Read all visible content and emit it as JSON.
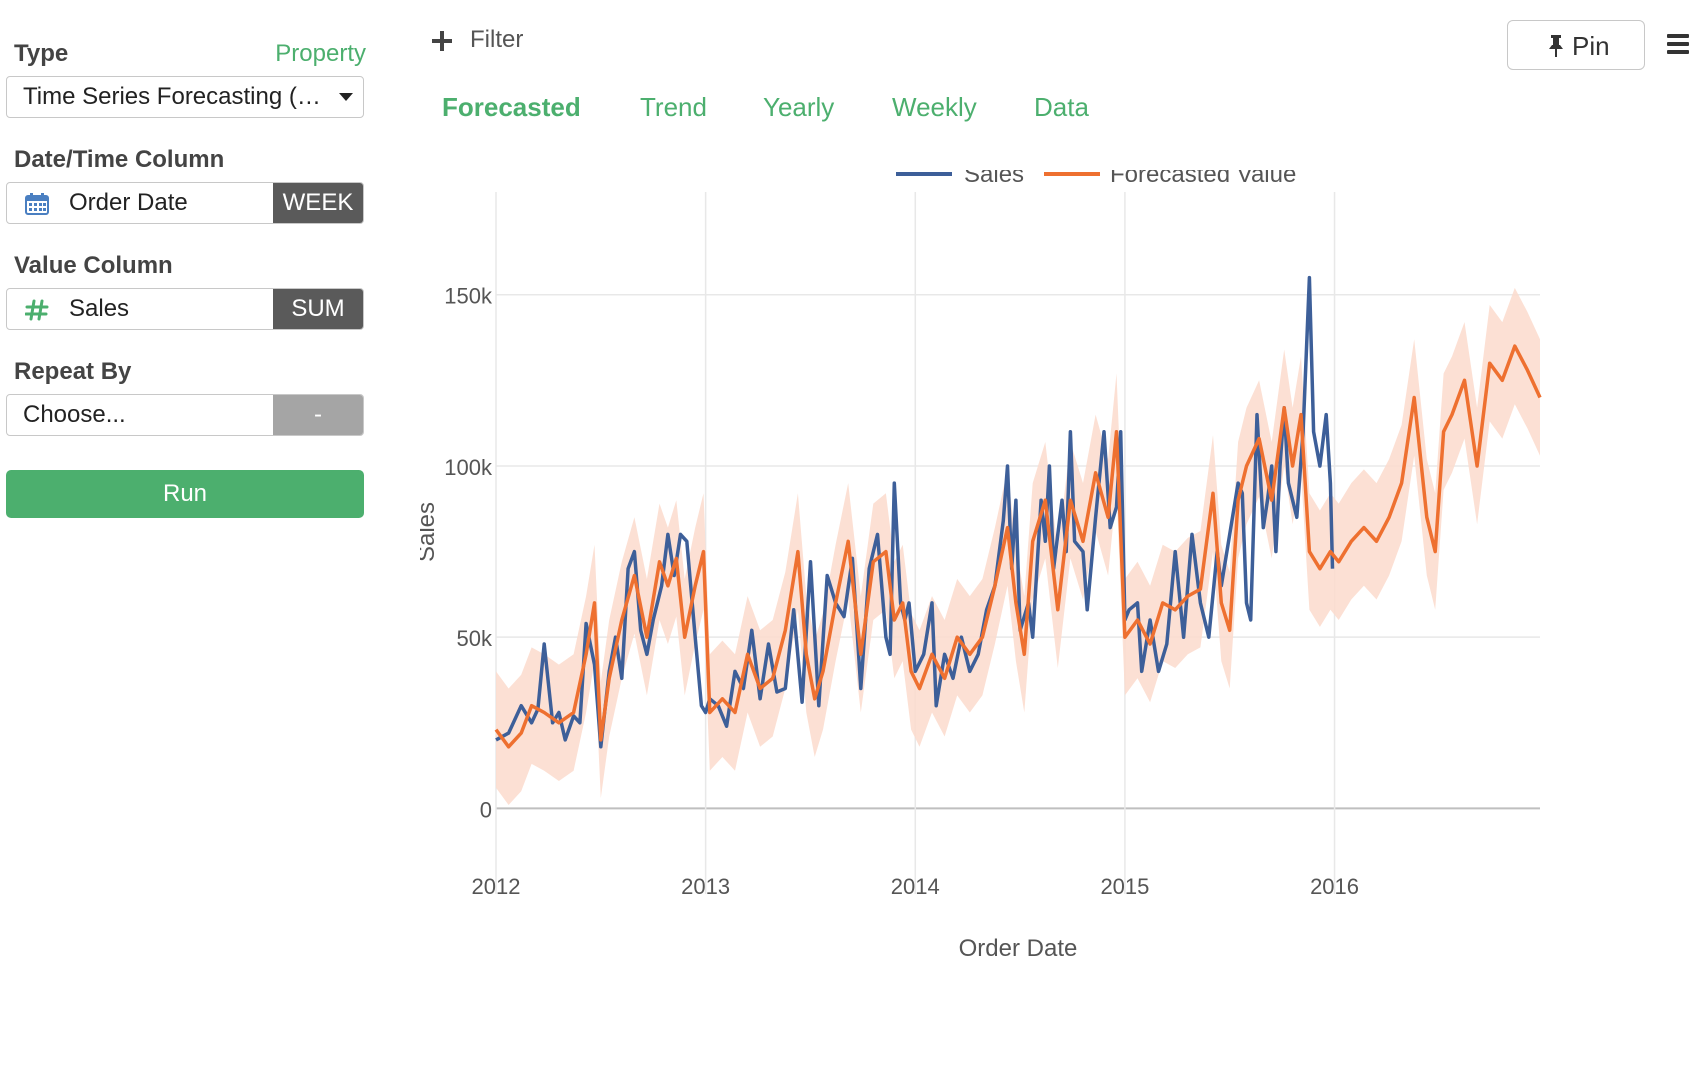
{
  "sidebar": {
    "type_label": "Type",
    "property_link": "Property",
    "type_value": "Time Series Forecasting (Prophet)",
    "datetime_label": "Date/Time Column",
    "datetime_value": "Order Date",
    "datetime_agg": "WEEK",
    "value_label": "Value Column",
    "value_value": "Sales",
    "value_agg": "SUM",
    "repeat_label": "Repeat By",
    "repeat_placeholder": "Choose...",
    "repeat_agg": "-",
    "run_label": "Run"
  },
  "toolbar": {
    "filter_label": "Filter",
    "pin_label": "Pin"
  },
  "tabs": [
    {
      "label": "Forecasted",
      "active": true
    },
    {
      "label": "Trend",
      "active": false
    },
    {
      "label": "Yearly",
      "active": false
    },
    {
      "label": "Weekly",
      "active": false
    },
    {
      "label": "Data",
      "active": false
    }
  ],
  "colors": {
    "accent": "#4caf6e",
    "sales": "#3d5f99",
    "forecast": "#ee7030",
    "band": "#fbdacd"
  },
  "chart_data": {
    "type": "line",
    "xlabel": "Order Date",
    "ylabel": "Sales",
    "xlim": [
      2012.0,
      2016.98
    ],
    "ylim": [
      -25000,
      180000
    ],
    "x_ticks": [
      2012,
      2013,
      2014,
      2015,
      2016
    ],
    "x_tick_labels": [
      "2012",
      "2013",
      "2014",
      "2015",
      "2016"
    ],
    "y_ticks": [
      0,
      50000,
      100000,
      150000
    ],
    "y_tick_labels": [
      "0",
      "50k",
      "100k",
      "150k"
    ],
    "grid": true,
    "legend": "top-center",
    "series": [
      {
        "name": "Sales",
        "color": "#3d5f99",
        "x": [
          2012.0,
          2012.06,
          2012.12,
          2012.17,
          2012.2,
          2012.23,
          2012.27,
          2012.3,
          2012.33,
          2012.37,
          2012.4,
          2012.43,
          2012.47,
          2012.5,
          2012.54,
          2012.57,
          2012.6,
          2012.63,
          2012.66,
          2012.69,
          2012.72,
          2012.75,
          2012.79,
          2012.82,
          2012.85,
          2012.88,
          2012.91,
          2012.95,
          2012.98,
          2013.0,
          2013.02,
          2013.06,
          2013.1,
          2013.14,
          2013.18,
          2013.22,
          2013.26,
          2013.3,
          2013.34,
          2013.38,
          2013.42,
          2013.46,
          2013.5,
          2013.54,
          2013.58,
          2013.62,
          2013.66,
          2013.7,
          2013.74,
          2013.78,
          2013.82,
          2013.86,
          2013.88,
          2013.9,
          2013.93,
          2013.95,
          2013.97,
          2014.0,
          2014.04,
          2014.08,
          2014.1,
          2014.14,
          2014.18,
          2014.22,
          2014.26,
          2014.3,
          2014.34,
          2014.38,
          2014.42,
          2014.44,
          2014.46,
          2014.48,
          2014.5,
          2014.54,
          2014.56,
          2014.6,
          2014.62,
          2014.64,
          2014.66,
          2014.7,
          2014.72,
          2014.74,
          2014.76,
          2014.8,
          2014.82,
          2014.86,
          2014.9,
          2014.93,
          2014.96,
          2014.98,
          2015.0,
          2015.02,
          2015.06,
          2015.08,
          2015.12,
          2015.16,
          2015.2,
          2015.24,
          2015.28,
          2015.32,
          2015.36,
          2015.4,
          2015.44,
          2015.46,
          2015.5,
          2015.54,
          2015.56,
          2015.58,
          2015.6,
          2015.63,
          2015.66,
          2015.68,
          2015.7,
          2015.72,
          2015.74,
          2015.76,
          2015.78,
          2015.8,
          2015.82,
          2015.85,
          2015.88,
          2015.9,
          2015.93,
          2015.96,
          2015.98,
          2015.99
        ],
        "y": [
          20000,
          22000,
          30000,
          25000,
          29000,
          48000,
          25000,
          28000,
          20000,
          27000,
          25000,
          54000,
          42000,
          18000,
          40000,
          50000,
          38000,
          70000,
          75000,
          52000,
          45000,
          55000,
          65000,
          80000,
          68000,
          80000,
          78000,
          50000,
          30000,
          28000,
          32000,
          30000,
          24000,
          40000,
          35000,
          52000,
          32000,
          48000,
          34000,
          35000,
          58000,
          31000,
          72000,
          30000,
          68000,
          60000,
          56000,
          73000,
          35000,
          70000,
          80000,
          50000,
          45000,
          95000,
          60000,
          55000,
          60000,
          40000,
          45000,
          60000,
          30000,
          45000,
          38000,
          50000,
          40000,
          45000,
          58000,
          65000,
          84000,
          100000,
          70000,
          90000,
          52000,
          60000,
          50000,
          90000,
          78000,
          100000,
          70000,
          90000,
          75000,
          110000,
          78000,
          75000,
          58000,
          85000,
          110000,
          82000,
          88000,
          110000,
          55000,
          58000,
          60000,
          40000,
          55000,
          40000,
          48000,
          75000,
          50000,
          80000,
          60000,
          50000,
          75000,
          65000,
          80000,
          95000,
          92000,
          60000,
          55000,
          115000,
          82000,
          90000,
          100000,
          75000,
          100000,
          117000,
          95000,
          90000,
          85000,
          110000,
          155000,
          110000,
          100000,
          115000,
          95000,
          70000
        ]
      },
      {
        "name": "Forecasted Value",
        "color": "#ee7030",
        "x": [
          2012.0,
          2012.06,
          2012.12,
          2012.17,
          2012.23,
          2012.3,
          2012.37,
          2012.43,
          2012.47,
          2012.5,
          2012.54,
          2012.6,
          2012.66,
          2012.72,
          2012.78,
          2012.82,
          2012.86,
          2012.9,
          2012.95,
          2012.99,
          2013.02,
          2013.08,
          2013.14,
          2013.2,
          2013.26,
          2013.32,
          2013.38,
          2013.44,
          2013.48,
          2013.52,
          2013.56,
          2013.62,
          2013.68,
          2013.74,
          2013.8,
          2013.86,
          2013.9,
          2013.94,
          2013.98,
          2014.02,
          2014.08,
          2014.14,
          2014.2,
          2014.26,
          2014.32,
          2014.38,
          2014.44,
          2014.48,
          2014.52,
          2014.56,
          2014.62,
          2014.68,
          2014.74,
          2014.8,
          2014.86,
          2014.92,
          2014.96,
          2015.0,
          2015.06,
          2015.12,
          2015.18,
          2015.24,
          2015.3,
          2015.36,
          2015.42,
          2015.46,
          2015.5,
          2015.54,
          2015.58,
          2015.64,
          2015.7,
          2015.76,
          2015.8,
          2015.84,
          2015.88,
          2015.93,
          2015.98,
          2016.02,
          2016.08,
          2016.14,
          2016.2,
          2016.26,
          2016.32,
          2016.38,
          2016.44,
          2016.48,
          2016.52,
          2016.56,
          2016.62,
          2016.68,
          2016.74,
          2016.8,
          2016.86,
          2016.92,
          2016.98
        ],
        "y": [
          23000,
          18000,
          22000,
          30000,
          28000,
          25000,
          28000,
          45000,
          60000,
          20000,
          38000,
          55000,
          68000,
          50000,
          72000,
          65000,
          73000,
          50000,
          65000,
          75000,
          28000,
          32000,
          28000,
          45000,
          35000,
          38000,
          52000,
          75000,
          45000,
          32000,
          40000,
          60000,
          78000,
          45000,
          72000,
          75000,
          55000,
          60000,
          40000,
          35000,
          45000,
          38000,
          50000,
          45000,
          50000,
          65000,
          82000,
          60000,
          45000,
          78000,
          90000,
          58000,
          90000,
          78000,
          98000,
          85000,
          110000,
          50000,
          55000,
          48000,
          60000,
          58000,
          62000,
          64000,
          92000,
          60000,
          52000,
          90000,
          100000,
          108000,
          90000,
          117000,
          100000,
          115000,
          75000,
          70000,
          75000,
          72000,
          78000,
          82000,
          78000,
          85000,
          95000,
          120000,
          85000,
          75000,
          110000,
          115000,
          125000,
          100000,
          130000,
          125000,
          135000,
          128000,
          120000
        ]
      }
    ]
  }
}
